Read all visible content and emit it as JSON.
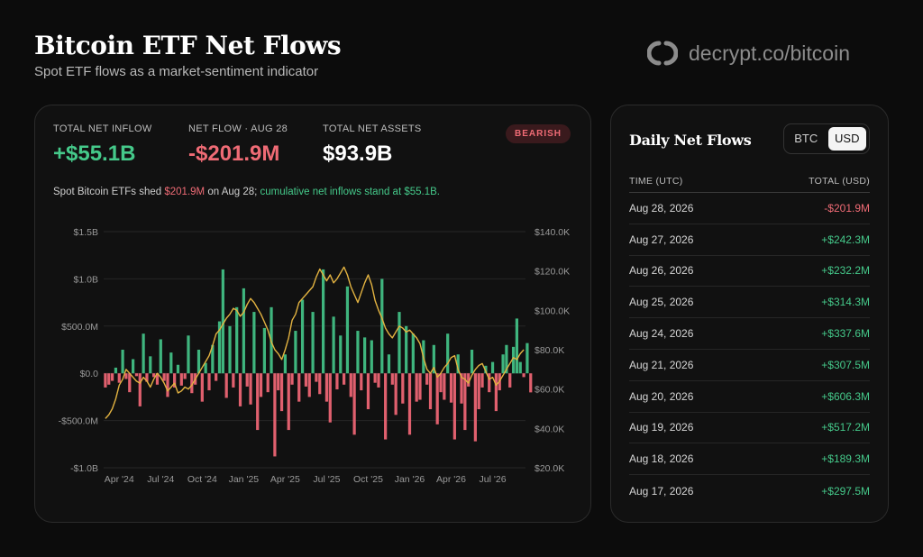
{
  "header": {
    "title": "Bitcoin ETF Net Flows",
    "subtitle": "Spot ETF flows as a market-sentiment indicator",
    "brand_text": "decrypt.co/bitcoin"
  },
  "stats": [
    {
      "label": "TOTAL NET INFLOW",
      "value": "+$55.1B",
      "tone": "green"
    },
    {
      "label": "NET FLOW · AUG 28",
      "value": "-$201.9M",
      "tone": "red"
    },
    {
      "label": "TOTAL NET ASSETS",
      "value": "$93.9B",
      "tone": "white"
    }
  ],
  "badge": "BEARISH",
  "summary": {
    "part1": "Spot Bitcoin ETFs shed ",
    "amount": "$201.9M",
    "part2": " on Aug 28; ",
    "part3": "cumulative net inflows stand at $55.1B."
  },
  "colors": {
    "inflow": "#3fb57e",
    "outflow": "#e0606e",
    "price_line": "#e3b341",
    "gridline": "#262626",
    "axis_text": "#9a9a9a"
  },
  "chart_data": {
    "type": "bar",
    "title": "",
    "y_left": {
      "min": -1000000000,
      "max": 1500000000,
      "ticks": [
        "-$1.0B",
        "-$500.0M",
        "$0.0",
        "$500.0M",
        "$1.0B",
        "$1.5B"
      ],
      "tick_values": [
        -1000000000,
        -500000000,
        0,
        500000000,
        1000000000,
        1500000000
      ]
    },
    "y_right": {
      "min": 20000,
      "max": 140000,
      "ticks": [
        "$20.0K",
        "$40.0K",
        "$60.0K",
        "$80.0K",
        "$100.0K",
        "$120.0K",
        "$140.0K"
      ],
      "tick_values": [
        20000,
        40000,
        60000,
        80000,
        100000,
        120000,
        140000
      ]
    },
    "x_ticks": [
      "Apr '24",
      "Jul '24",
      "Oct '24",
      "Jan '25",
      "Apr '25",
      "Jul '25",
      "Oct '25",
      "Jan '26",
      "Apr '26",
      "Jul '26"
    ],
    "x_tick_positions": [
      4,
      16,
      28,
      40,
      52,
      64,
      76,
      88,
      100,
      112
    ],
    "x_count": 122,
    "series": [
      {
        "kind": "bar",
        "values": [
          -150,
          -120,
          -80,
          60,
          -100,
          250,
          -60,
          -200,
          150,
          -30,
          -350,
          420,
          -90,
          180,
          -40,
          -120,
          360,
          -80,
          -250,
          220,
          -150,
          90,
          -130,
          -60,
          400,
          -210,
          -120,
          250,
          -300,
          110,
          -180,
          300,
          -80,
          550,
          1100,
          -260,
          500,
          -150,
          700,
          -350,
          900,
          -140,
          -330,
          650,
          -600,
          -250,
          480,
          -200,
          700,
          -880,
          -180,
          -400,
          200,
          -600,
          -120,
          450,
          -300,
          780,
          -140,
          -250,
          650,
          -90,
          -220,
          1100,
          -300,
          -520,
          600,
          -170,
          400,
          -120,
          920,
          -250,
          -650,
          450,
          -180,
          380,
          -380,
          350,
          -100,
          -150,
          1000,
          -700,
          200,
          -120,
          -440,
          650,
          -320,
          500,
          -650,
          420,
          -300,
          -280,
          350,
          -120,
          -380,
          300,
          -540,
          -200,
          -280,
          420,
          -310,
          -700,
          200,
          -320,
          -600,
          -140,
          250,
          -720,
          -380,
          -150,
          80,
          -200,
          120,
          -400,
          -180,
          200,
          300,
          -150,
          280,
          580,
          120,
          -40,
          320,
          -202
        ],
        "unit_scale": 1000000
      },
      {
        "kind": "line",
        "values": [
          45000,
          47000,
          50000,
          55000,
          62000,
          65000,
          70000,
          68000,
          66000,
          64000,
          63000,
          66000,
          64000,
          61000,
          65000,
          68000,
          66000,
          63000,
          59000,
          61000,
          63000,
          58000,
          59000,
          61000,
          60000,
          62000,
          65000,
          68000,
          71000,
          74000,
          77000,
          82000,
          88000,
          90000,
          93000,
          96000,
          98000,
          101000,
          100000,
          97000,
          99000,
          103000,
          106000,
          104000,
          101000,
          98000,
          94000,
          90000,
          84000,
          80000,
          78000,
          75000,
          80000,
          86000,
          95000,
          98000,
          104000,
          106000,
          108000,
          110000,
          112000,
          117000,
          121000,
          118000,
          115000,
          118000,
          114000,
          116000,
          119000,
          122000,
          118000,
          112000,
          108000,
          104000,
          109000,
          114000,
          118000,
          113000,
          105000,
          100000,
          96000,
          91000,
          88000,
          86000,
          89000,
          92000,
          91000,
          89000,
          90000,
          88000,
          86000,
          83000,
          76000,
          70000,
          68000,
          71000,
          66000,
          68000,
          71000,
          73000,
          76000,
          77000,
          70000,
          66000,
          65000,
          63000,
          67000,
          70000,
          72000,
          73000,
          69000,
          65000,
          66000,
          62000,
          64000,
          67000,
          70000,
          73000,
          76000,
          75000,
          78000,
          80000
        ]
      }
    ]
  },
  "side": {
    "title": "Daily Net Flows",
    "toggle": [
      {
        "label": "BTC",
        "active": false
      },
      {
        "label": "USD",
        "active": true
      }
    ],
    "col_time": "TIME (UTC)",
    "col_total": "TOTAL (USD)",
    "rows": [
      {
        "date": "Aug 28, 2026",
        "value": "-$201.9M",
        "tone": "red"
      },
      {
        "date": "Aug 27, 2026",
        "value": "+$242.3M",
        "tone": "green"
      },
      {
        "date": "Aug 26, 2026",
        "value": "+$232.2M",
        "tone": "green"
      },
      {
        "date": "Aug 25, 2026",
        "value": "+$314.3M",
        "tone": "green"
      },
      {
        "date": "Aug 24, 2026",
        "value": "+$337.6M",
        "tone": "green"
      },
      {
        "date": "Aug 21, 2026",
        "value": "+$307.5M",
        "tone": "green"
      },
      {
        "date": "Aug 20, 2026",
        "value": "+$606.3M",
        "tone": "green"
      },
      {
        "date": "Aug 19, 2026",
        "value": "+$517.2M",
        "tone": "green"
      },
      {
        "date": "Aug 18, 2026",
        "value": "+$189.3M",
        "tone": "green"
      },
      {
        "date": "Aug 17, 2026",
        "value": "+$297.5M",
        "tone": "green"
      }
    ]
  }
}
